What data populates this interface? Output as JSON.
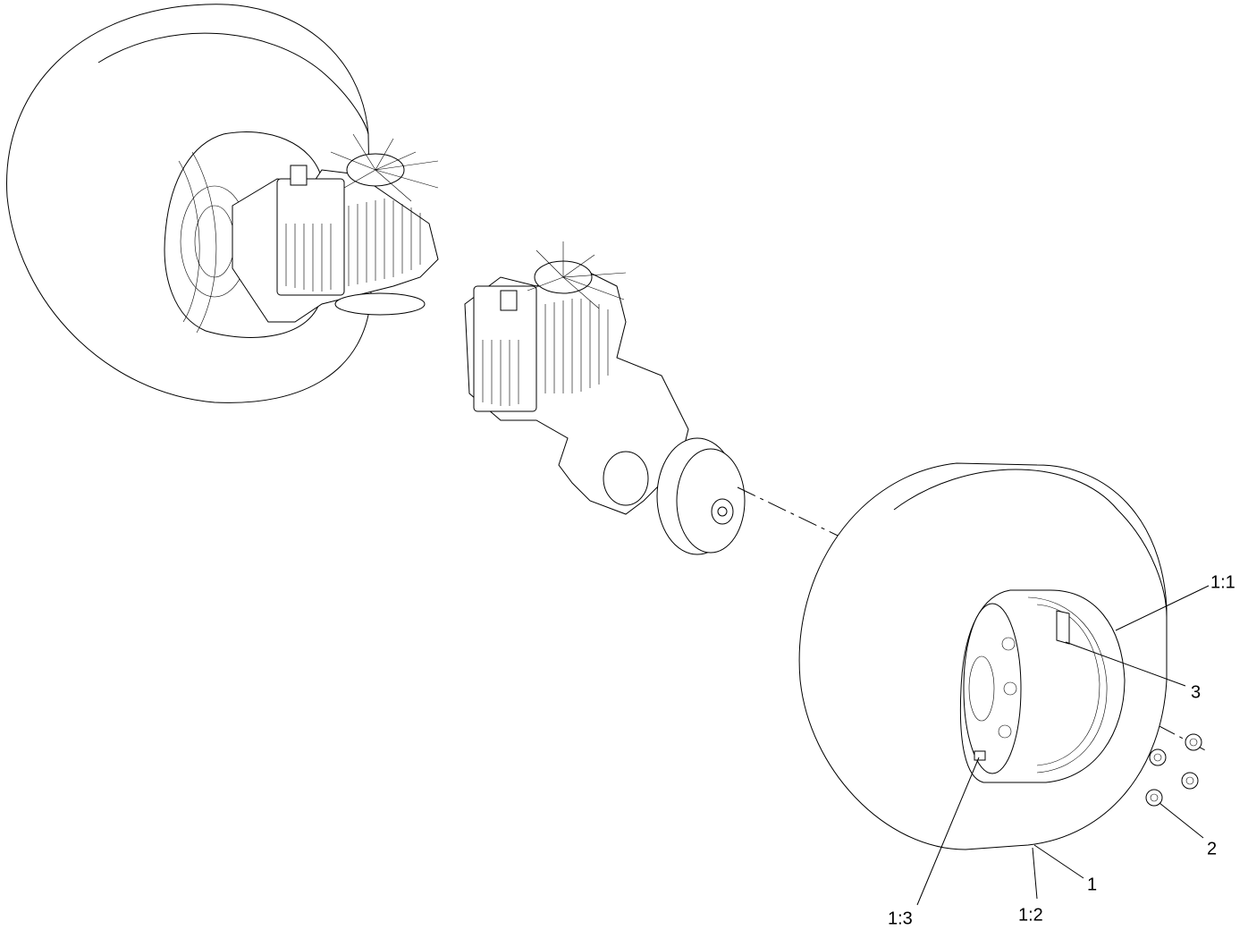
{
  "callouts": [
    {
      "label": "1:1"
    },
    {
      "label": "3"
    },
    {
      "label": "2"
    },
    {
      "label": "1"
    },
    {
      "label": "1:2"
    },
    {
      "label": "1:3"
    }
  ]
}
